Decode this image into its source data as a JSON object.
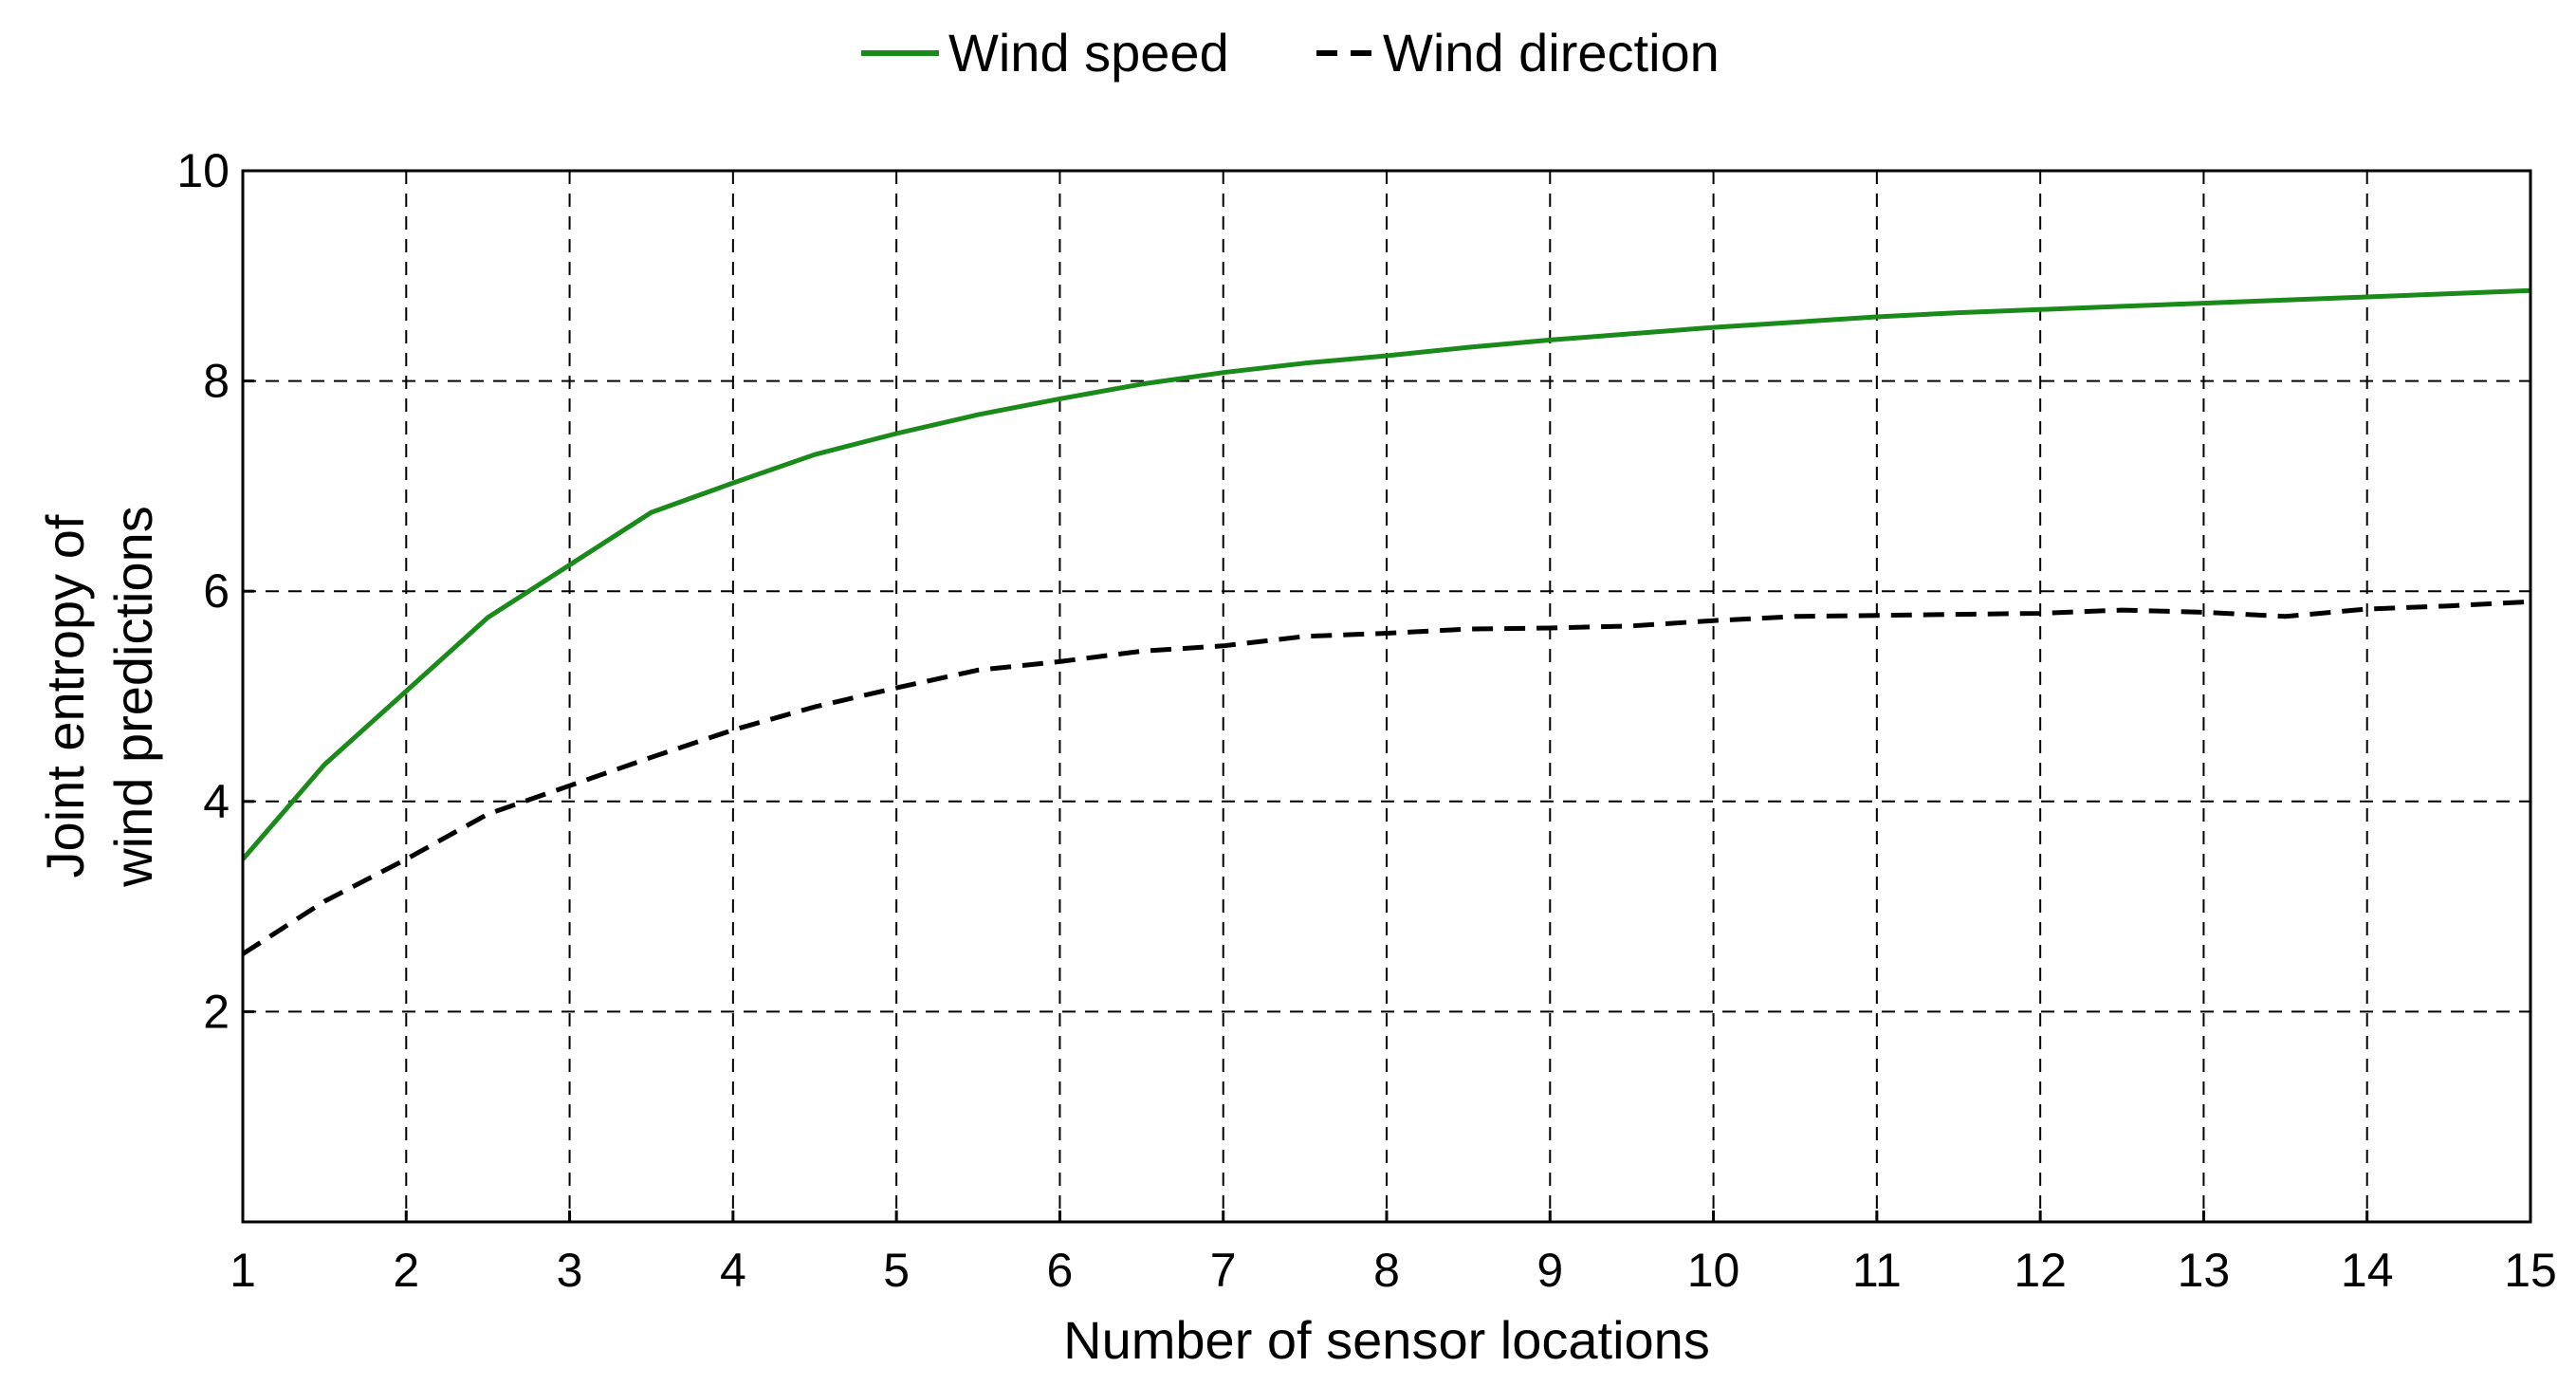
{
  "chart_data": {
    "type": "line",
    "xlabel": "Number of sensor locations",
    "ylabel": [
      "Joint entropy of",
      "wind predictions"
    ],
    "xlim": [
      1,
      15
    ],
    "ylim": [
      0,
      10
    ],
    "xticks": [
      1,
      2,
      3,
      4,
      5,
      6,
      7,
      8,
      9,
      10,
      11,
      12,
      13,
      14,
      15
    ],
    "yticks": [
      2,
      4,
      6,
      8,
      10
    ],
    "grid": true,
    "legend_position": "top-center",
    "series": [
      {
        "name": "Wind speed",
        "color": "#1a8a1a",
        "style": "solid",
        "x": [
          1,
          1.5,
          2,
          2.5,
          3,
          3.5,
          4,
          4.5,
          5,
          5.5,
          6,
          6.5,
          7,
          7.5,
          8,
          8.5,
          9,
          9.5,
          10,
          10.5,
          11,
          11.5,
          12,
          12.5,
          13,
          13.5,
          14,
          14.5,
          15
        ],
        "values": [
          3.45,
          4.35,
          5.05,
          5.75,
          6.25,
          6.75,
          7.03,
          7.3,
          7.5,
          7.68,
          7.83,
          7.97,
          8.08,
          8.17,
          8.24,
          8.32,
          8.39,
          8.45,
          8.51,
          8.56,
          8.61,
          8.65,
          8.68,
          8.71,
          8.74,
          8.77,
          8.8,
          8.83,
          8.86
        ]
      },
      {
        "name": "Wind direction",
        "color": "#000000",
        "style": "dashed",
        "x": [
          1,
          1.5,
          2,
          2.5,
          3,
          3.5,
          4,
          4.5,
          5,
          5.5,
          6,
          6.5,
          7,
          7.5,
          8,
          8.5,
          9,
          9.5,
          10,
          10.5,
          11,
          11.5,
          12,
          12.5,
          13,
          13.5,
          14,
          14.5,
          15
        ],
        "values": [
          2.55,
          3.05,
          3.45,
          3.88,
          4.15,
          4.42,
          4.68,
          4.9,
          5.08,
          5.25,
          5.33,
          5.43,
          5.48,
          5.57,
          5.6,
          5.64,
          5.65,
          5.67,
          5.72,
          5.76,
          5.77,
          5.78,
          5.79,
          5.82,
          5.8,
          5.76,
          5.83,
          5.86,
          5.9
        ]
      }
    ]
  }
}
